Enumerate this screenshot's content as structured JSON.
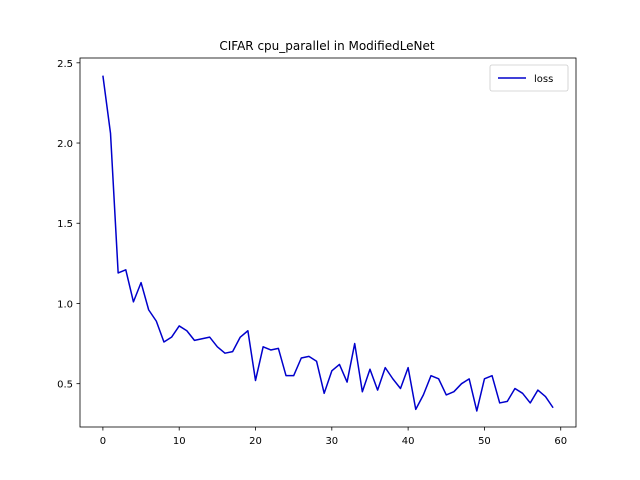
{
  "chart_data": {
    "type": "line",
    "title": "CIFAR cpu_parallel in ModifiedLeNet",
    "xlabel": "",
    "ylabel": "",
    "xlim": [
      -3,
      62
    ],
    "ylim": [
      0.23,
      2.53
    ],
    "x_ticks": [
      0,
      10,
      20,
      30,
      40,
      50,
      60
    ],
    "y_ticks": [
      0.5,
      1.0,
      1.5,
      2.0,
      2.5
    ],
    "y_tick_labels": [
      "0.5",
      "1.0",
      "1.5",
      "2.0",
      "2.5"
    ],
    "grid": false,
    "legend": {
      "position": "top-right",
      "entries": [
        "loss"
      ]
    },
    "series": [
      {
        "name": "loss",
        "color": "#0000cc",
        "x": [
          0,
          1,
          2,
          3,
          4,
          5,
          6,
          7,
          8,
          9,
          10,
          11,
          12,
          13,
          14,
          15,
          16,
          17,
          18,
          19,
          20,
          21,
          22,
          23,
          24,
          25,
          26,
          27,
          28,
          29,
          30,
          31,
          32,
          33,
          34,
          35,
          36,
          37,
          38,
          39,
          40,
          41,
          42,
          43,
          44,
          45,
          46,
          47,
          48,
          49,
          50,
          51,
          52,
          53,
          54,
          55,
          56,
          57,
          58,
          59
        ],
        "values": [
          2.42,
          2.06,
          1.19,
          1.21,
          1.01,
          1.13,
          0.96,
          0.89,
          0.76,
          0.79,
          0.86,
          0.83,
          0.77,
          0.78,
          0.79,
          0.73,
          0.69,
          0.7,
          0.79,
          0.83,
          0.52,
          0.73,
          0.71,
          0.72,
          0.55,
          0.55,
          0.66,
          0.67,
          0.64,
          0.44,
          0.58,
          0.62,
          0.51,
          0.75,
          0.45,
          0.59,
          0.46,
          0.6,
          0.53,
          0.47,
          0.6,
          0.34,
          0.43,
          0.55,
          0.53,
          0.43,
          0.45,
          0.5,
          0.53,
          0.33,
          0.53,
          0.55,
          0.38,
          0.39,
          0.47,
          0.44,
          0.38,
          0.46,
          0.42,
          0.35
        ]
      }
    ]
  }
}
